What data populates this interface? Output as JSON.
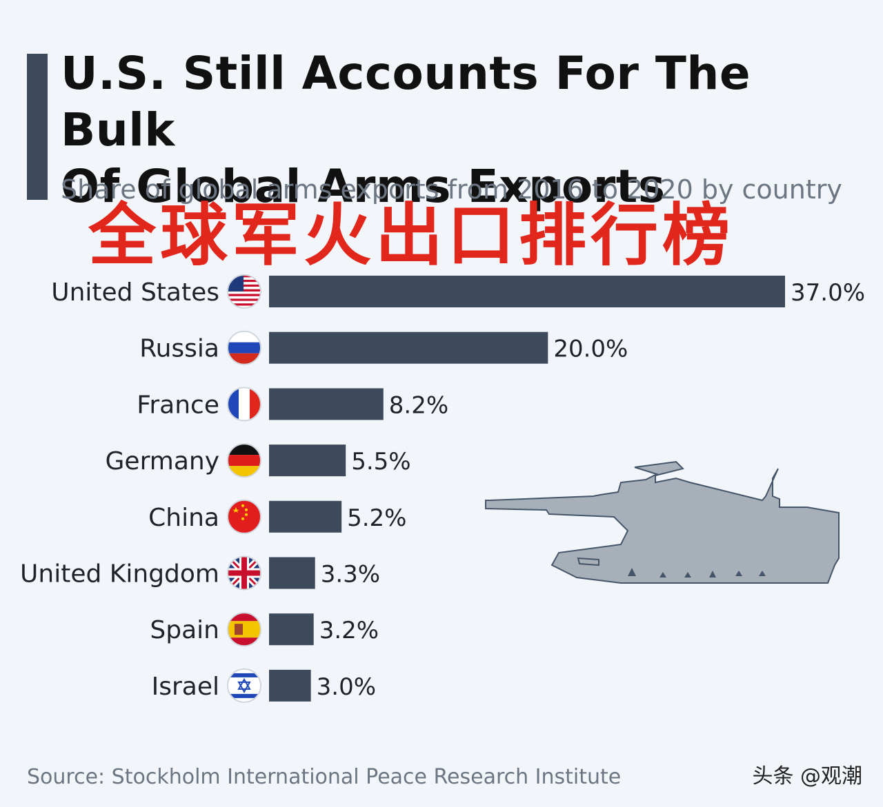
{
  "header": {
    "title_line1": "U.S. Still Accounts For The Bulk",
    "title_line2": "Of Global Arms Exports",
    "subtitle": "Share of global arms exports from 2016 to 2020 by country",
    "overlay_text": "全球军火出口排行榜"
  },
  "chart_data": {
    "type": "bar",
    "orientation": "horizontal",
    "categories": [
      "United States",
      "Russia",
      "France",
      "Germany",
      "China",
      "United Kingdom",
      "Spain",
      "Israel"
    ],
    "values": [
      37.0,
      20.0,
      8.2,
      5.5,
      5.2,
      3.3,
      3.2,
      3.0
    ],
    "value_labels": [
      "37.0%",
      "20.0%",
      "8.2%",
      "5.5%",
      "5.2%",
      "3.3%",
      "3.2%",
      "3.0%"
    ],
    "flag_icons": [
      "us-flag-icon",
      "russia-flag-icon",
      "france-flag-icon",
      "germany-flag-icon",
      "china-flag-icon",
      "uk-flag-icon",
      "spain-flag-icon",
      "israel-flag-icon"
    ],
    "bar_color": "#3c4a5c",
    "title": "U.S. Still Accounts For The Bulk Of Global Arms Exports",
    "subtitle": "Share of global arms exports from 2016 to 2020 by country",
    "xlim": [
      0,
      37
    ],
    "grid": false,
    "legend": "none"
  },
  "decorations": {
    "tank_icon": "tank-silhouette-icon",
    "tank_color": "#a7afb9"
  },
  "footer": {
    "source": "Source: Stockholm International Peace Research Institute",
    "watermark": "头条 @观潮"
  },
  "colors": {
    "background": "#f2f5f9",
    "accent": "#3c4a5c",
    "overlay_red": "#e1261c",
    "muted_text": "#6c7682"
  }
}
